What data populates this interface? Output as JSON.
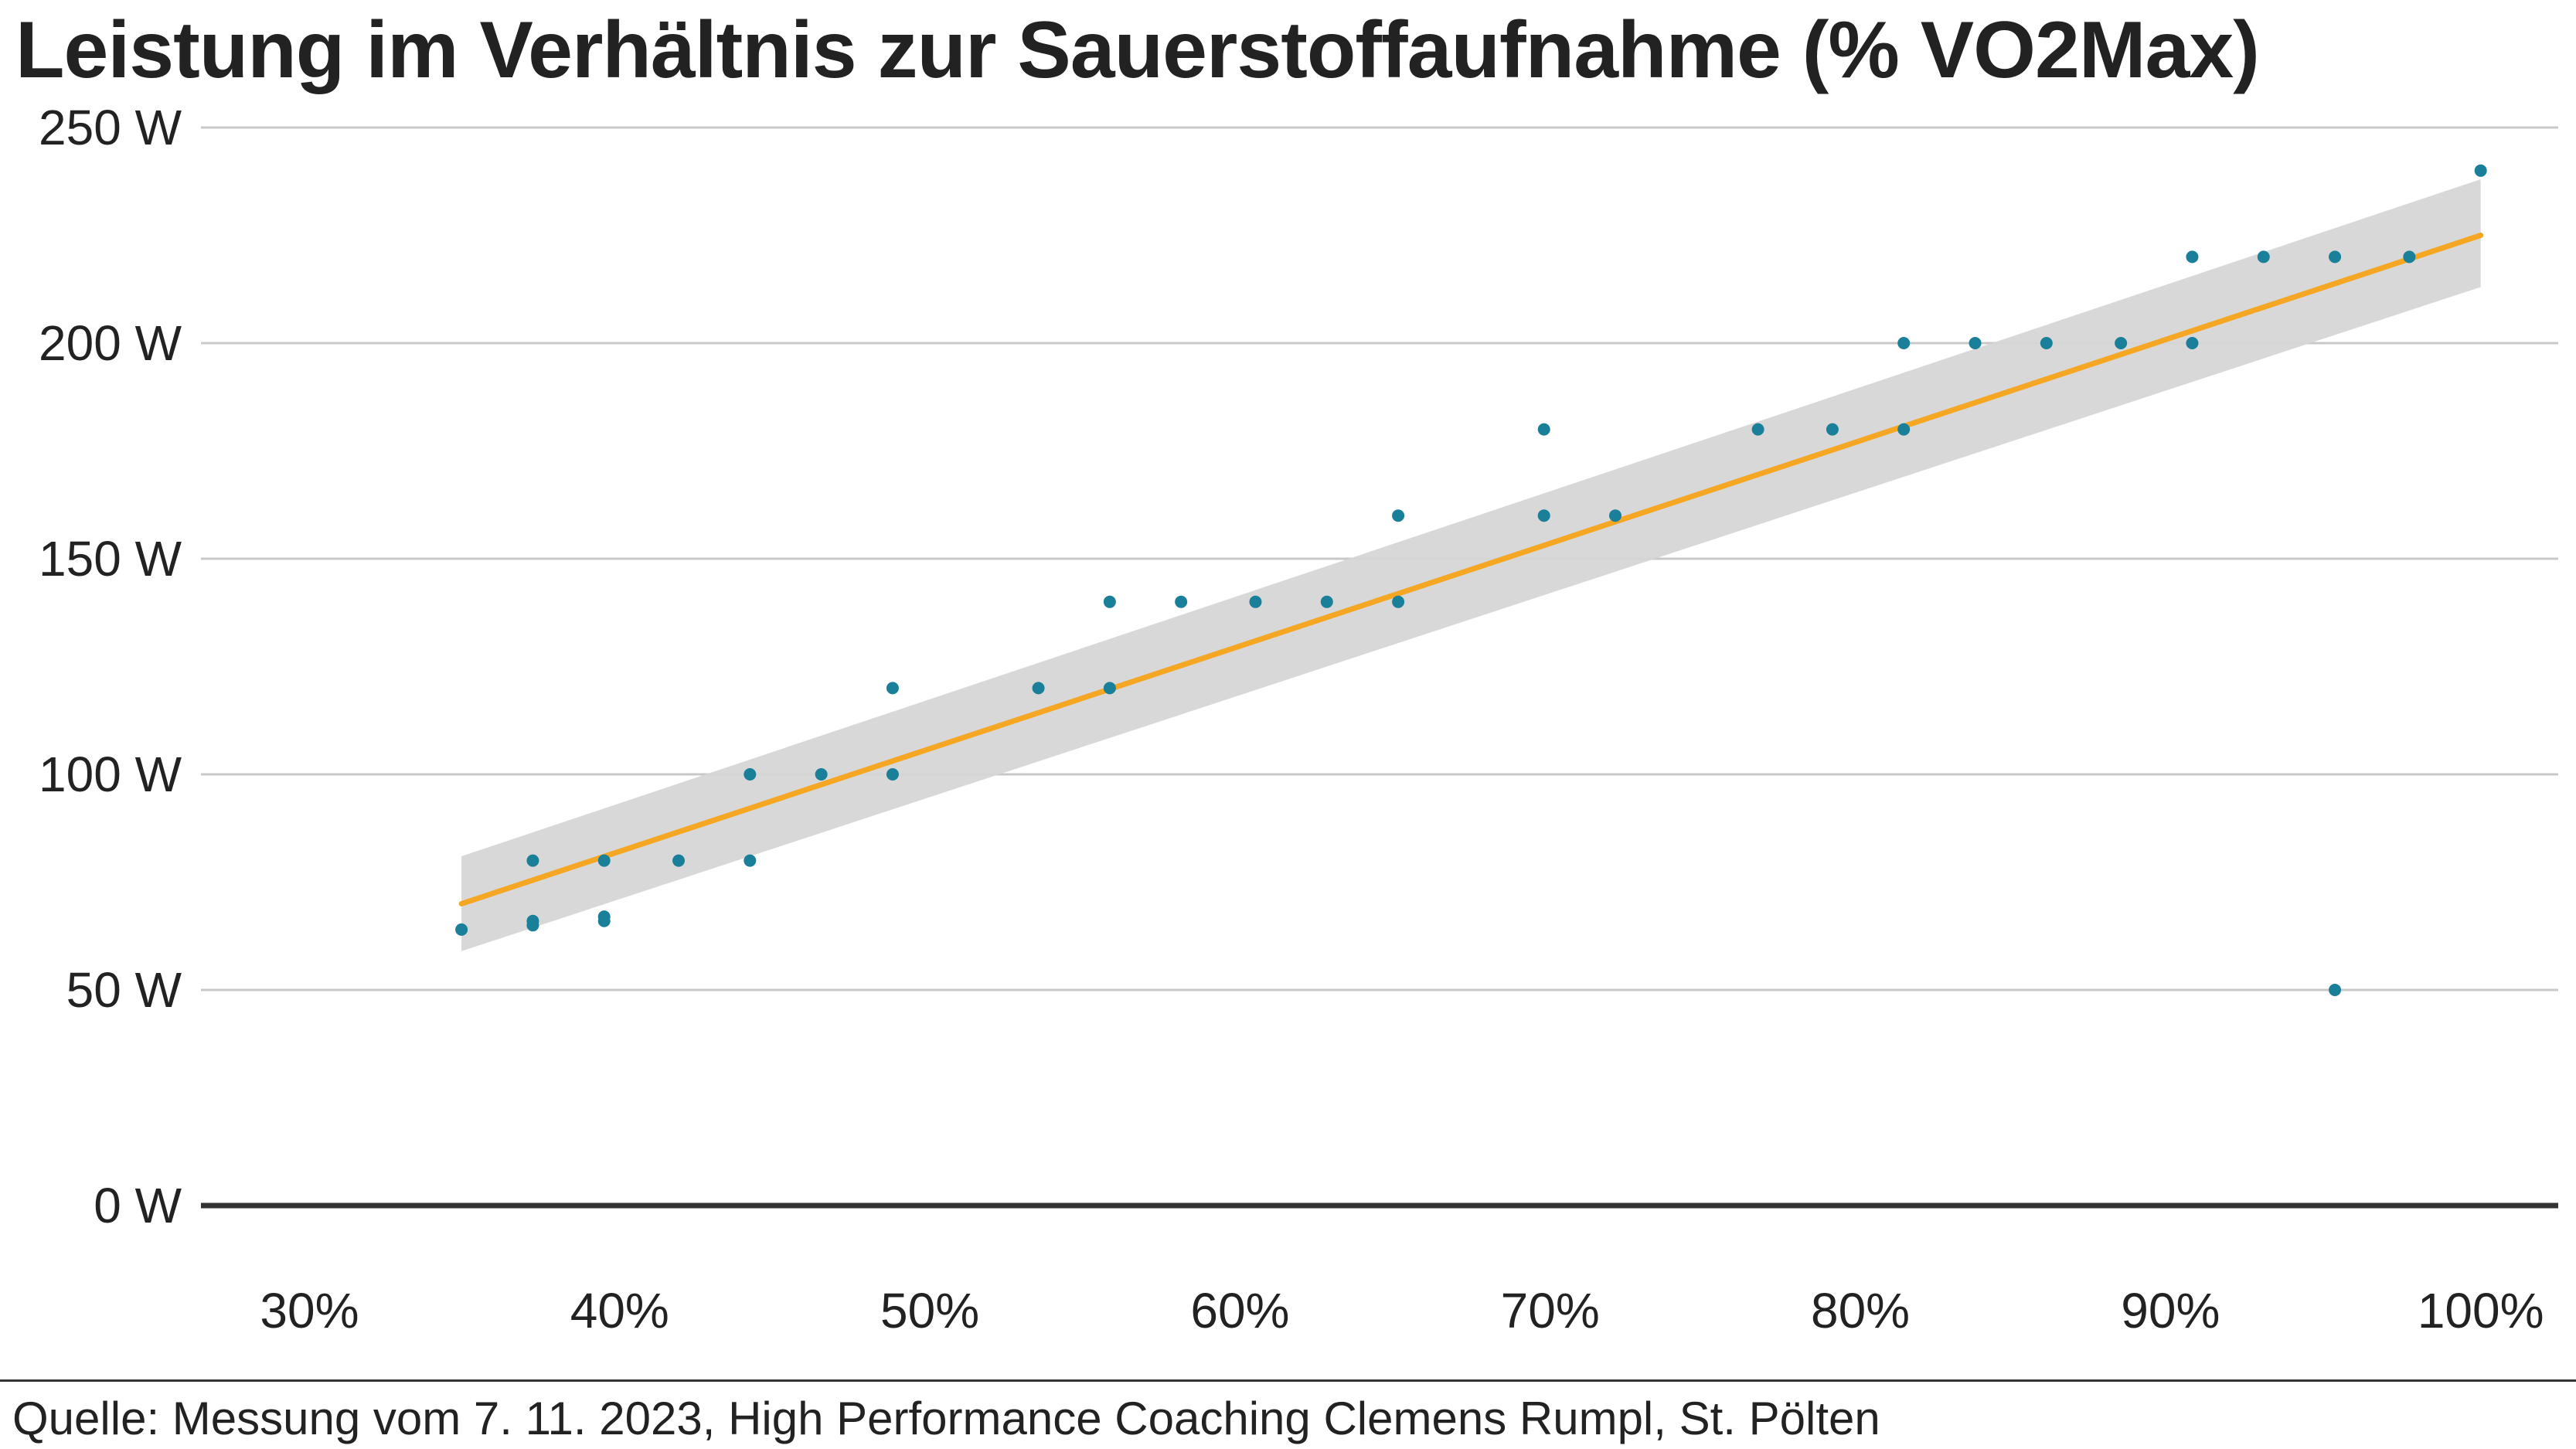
{
  "chart_data": {
    "type": "scatter",
    "title": "Leistung im Verhältnis zur Sauerstoffaufnahme (% VO2Max)",
    "xlabel": "",
    "ylabel": "",
    "xlim": [
      26.5,
      102.5
    ],
    "ylim": [
      0,
      250
    ],
    "x_ticks": [
      30,
      40,
      50,
      60,
      70,
      80,
      90,
      100
    ],
    "x_tick_labels": [
      "30%",
      "40%",
      "50%",
      "60%",
      "70%",
      "80%",
      "90%",
      "100%"
    ],
    "y_ticks": [
      0,
      50,
      100,
      150,
      200,
      250
    ],
    "y_tick_labels": [
      "0 W",
      "50 W",
      "100 W",
      "150 W",
      "200 W",
      "250 W"
    ],
    "grid": "horizontal",
    "points": [
      {
        "x": 34.9,
        "y": 64
      },
      {
        "x": 37.2,
        "y": 80
      },
      {
        "x": 37.2,
        "y": 66
      },
      {
        "x": 37.2,
        "y": 65
      },
      {
        "x": 39.5,
        "y": 80
      },
      {
        "x": 39.5,
        "y": 67
      },
      {
        "x": 39.5,
        "y": 66
      },
      {
        "x": 41.9,
        "y": 80
      },
      {
        "x": 44.2,
        "y": 100
      },
      {
        "x": 44.2,
        "y": 80
      },
      {
        "x": 46.5,
        "y": 100
      },
      {
        "x": 48.8,
        "y": 120
      },
      {
        "x": 48.8,
        "y": 100
      },
      {
        "x": 53.5,
        "y": 120
      },
      {
        "x": 55.8,
        "y": 140
      },
      {
        "x": 55.8,
        "y": 120
      },
      {
        "x": 58.1,
        "y": 140
      },
      {
        "x": 60.5,
        "y": 140
      },
      {
        "x": 62.8,
        "y": 140
      },
      {
        "x": 65.1,
        "y": 160
      },
      {
        "x": 65.1,
        "y": 140
      },
      {
        "x": 69.8,
        "y": 180
      },
      {
        "x": 69.8,
        "y": 160
      },
      {
        "x": 72.1,
        "y": 160
      },
      {
        "x": 76.7,
        "y": 180
      },
      {
        "x": 79.1,
        "y": 180
      },
      {
        "x": 81.4,
        "y": 200
      },
      {
        "x": 81.4,
        "y": 180
      },
      {
        "x": 83.7,
        "y": 200
      },
      {
        "x": 86.0,
        "y": 200
      },
      {
        "x": 88.4,
        "y": 200
      },
      {
        "x": 90.7,
        "y": 220
      },
      {
        "x": 90.7,
        "y": 200
      },
      {
        "x": 93.0,
        "y": 220
      },
      {
        "x": 95.3,
        "y": 220
      },
      {
        "x": 95.3,
        "y": 50
      },
      {
        "x": 97.7,
        "y": 220
      },
      {
        "x": 100.0,
        "y": 240
      }
    ],
    "trend_line": {
      "x": [
        34.9,
        100.0
      ],
      "y": [
        70,
        225
      ]
    },
    "confidence_band": {
      "x": [
        34.9,
        100.0
      ],
      "lower": [
        59,
        213
      ],
      "upper": [
        81,
        238
      ]
    },
    "colors": {
      "points": "#1a7f99",
      "trend_line": "#f5a623",
      "confidence_band": "#d6d6d6",
      "grid": "#c8c8c8",
      "baseline": "#333333",
      "text": "#222222"
    }
  },
  "source": "Quelle: Messung vom 7. 11. 2023, High Performance Coaching Clemens Rumpl, St. Pölten"
}
